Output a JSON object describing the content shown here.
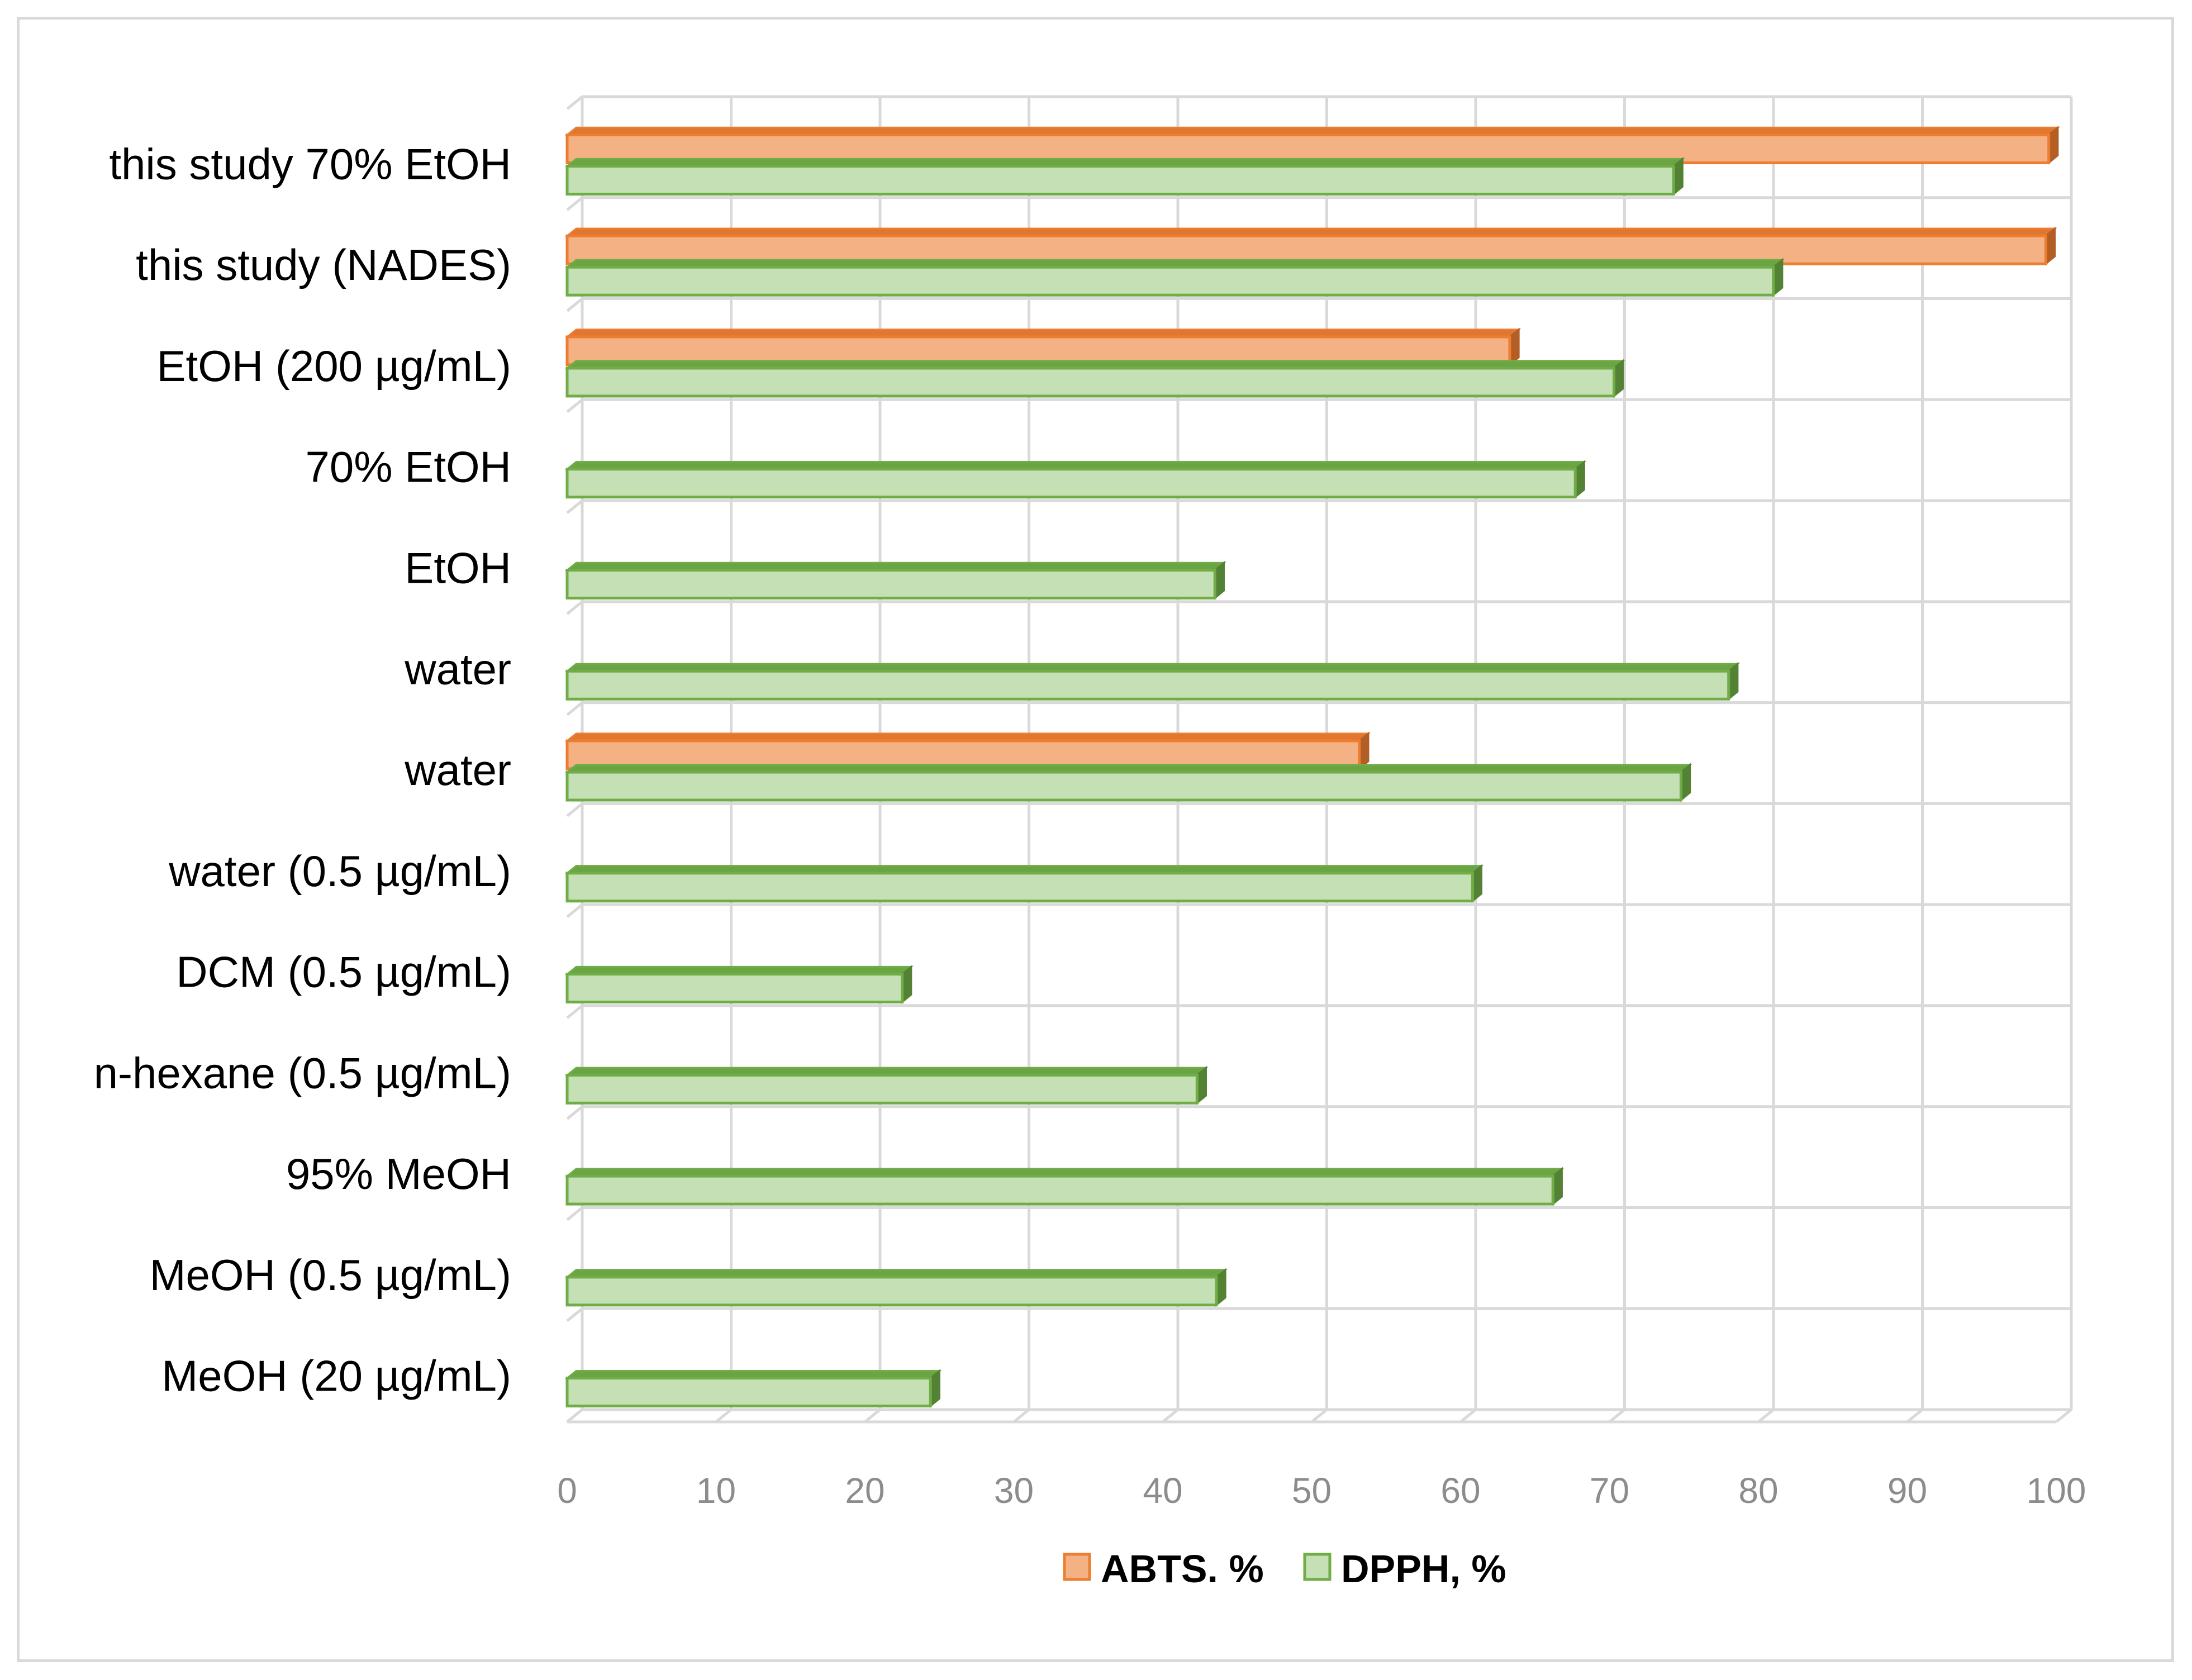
{
  "chart_data": {
    "type": "bar",
    "orientation": "horizontal",
    "style": "3d-clustered",
    "title": "",
    "xlabel": "",
    "ylabel": "",
    "xlim": [
      0,
      100
    ],
    "x_ticks": [
      "0",
      "10",
      "20",
      "30",
      "40",
      "50",
      "60",
      "70",
      "80",
      "90",
      "100"
    ],
    "grid": true,
    "legend_position": "bottom",
    "categories": [
      "this study 70% EtOH",
      "this study (NADES)",
      "EtOH (200 µg/mL)",
      "70% EtOH",
      "EtOH",
      "water",
      "water",
      "water (0.5 µg/mL)",
      "DCM  (0.5 µg/mL)",
      "n-hexane  (0.5 µg/mL)",
      "95% MeOH",
      "MeOH  (0.5 µg/mL)",
      "MeOH  (20 µg/mL) "
    ],
    "series": [
      {
        "name": "ABTS. %",
        "color": "#f4b183",
        "edge_color": "#ed7d31",
        "values": [
          99.5,
          99.3,
          63.3,
          null,
          null,
          null,
          53.2,
          null,
          null,
          null,
          null,
          null,
          null
        ]
      },
      {
        "name": "DPPH, %",
        "color": "#c5e0b4",
        "edge_color": "#70ad47",
        "values": [
          74.3,
          81.0,
          70.3,
          67.7,
          43.5,
          78.0,
          74.8,
          60.8,
          22.5,
          42.3,
          66.2,
          43.6,
          24.4
        ]
      }
    ]
  }
}
